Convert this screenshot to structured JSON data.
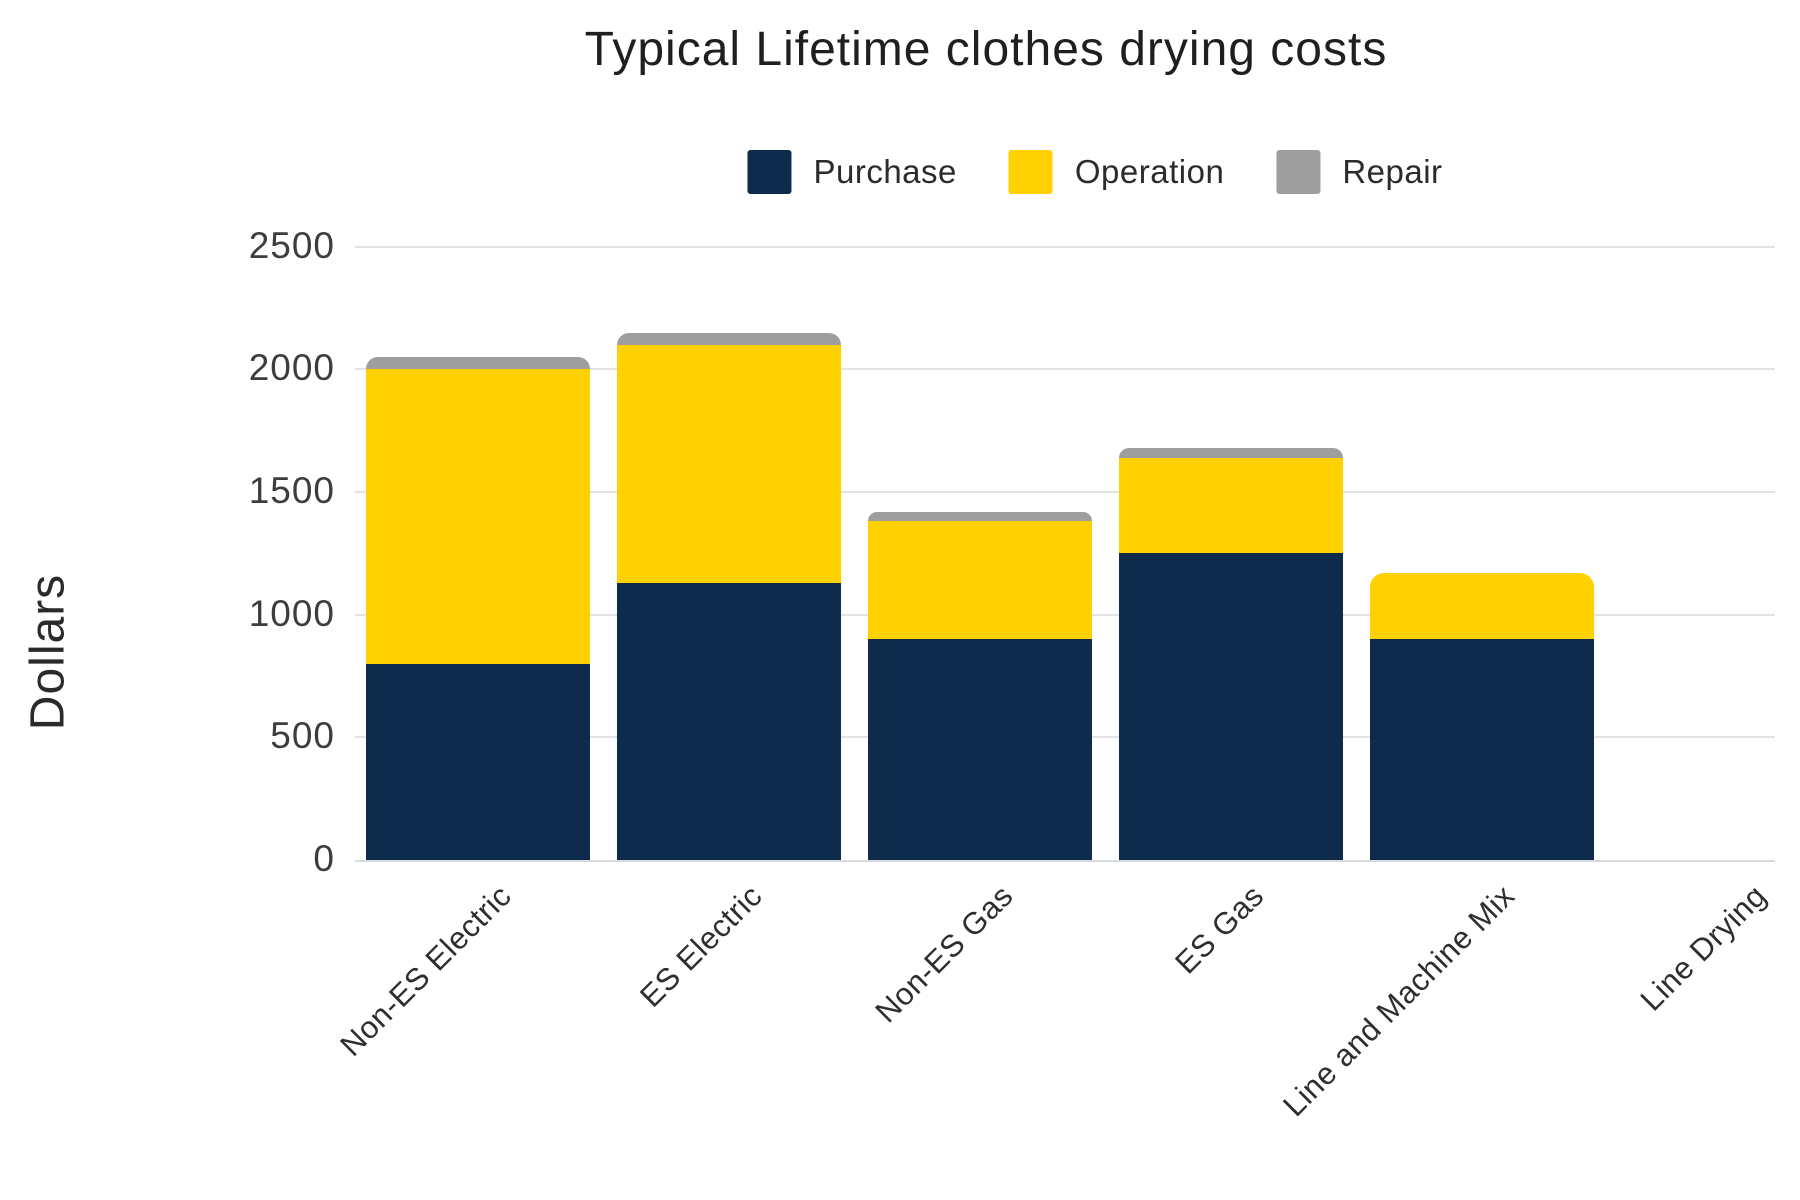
{
  "chart_data": {
    "type": "bar",
    "stacked": true,
    "title": "Typical Lifetime clothes drying costs",
    "ylabel": "Dollars",
    "xlabel": "",
    "categories": [
      "Non-ES Electric",
      "ES Electric",
      "Non-ES Gas",
      "ES Gas",
      "Line and Machine Mix",
      "Line Drying"
    ],
    "series": [
      {
        "name": "Purchase",
        "color": "#0e2b4b",
        "values": [
          800,
          1130,
          900,
          1250,
          900,
          0
        ]
      },
      {
        "name": "Operation",
        "color": "#ffd100",
        "values": [
          1200,
          970,
          480,
          390,
          270,
          0
        ]
      },
      {
        "name": "Repair",
        "color": "#9e9e9e",
        "values": [
          50,
          50,
          40,
          40,
          0,
          0
        ]
      }
    ],
    "totals": [
      2050,
      2150,
      1420,
      1680,
      1170,
      0
    ],
    "y_ticks": [
      0,
      500,
      1000,
      1500,
      2000,
      2500
    ],
    "ylim": [
      0,
      2500
    ],
    "grid": true,
    "legend_position": "top",
    "x_label_rotation_deg": -45
  },
  "colors": {
    "background": "#ffffff",
    "purchase": "#0e2b4b",
    "operation": "#ffd100",
    "repair": "#9e9e9e",
    "gridline": "#e3e3e3",
    "axis_line": "#d7dbe0",
    "title_text": "#1f1f1f",
    "tick_text": "#3d3d3d"
  }
}
